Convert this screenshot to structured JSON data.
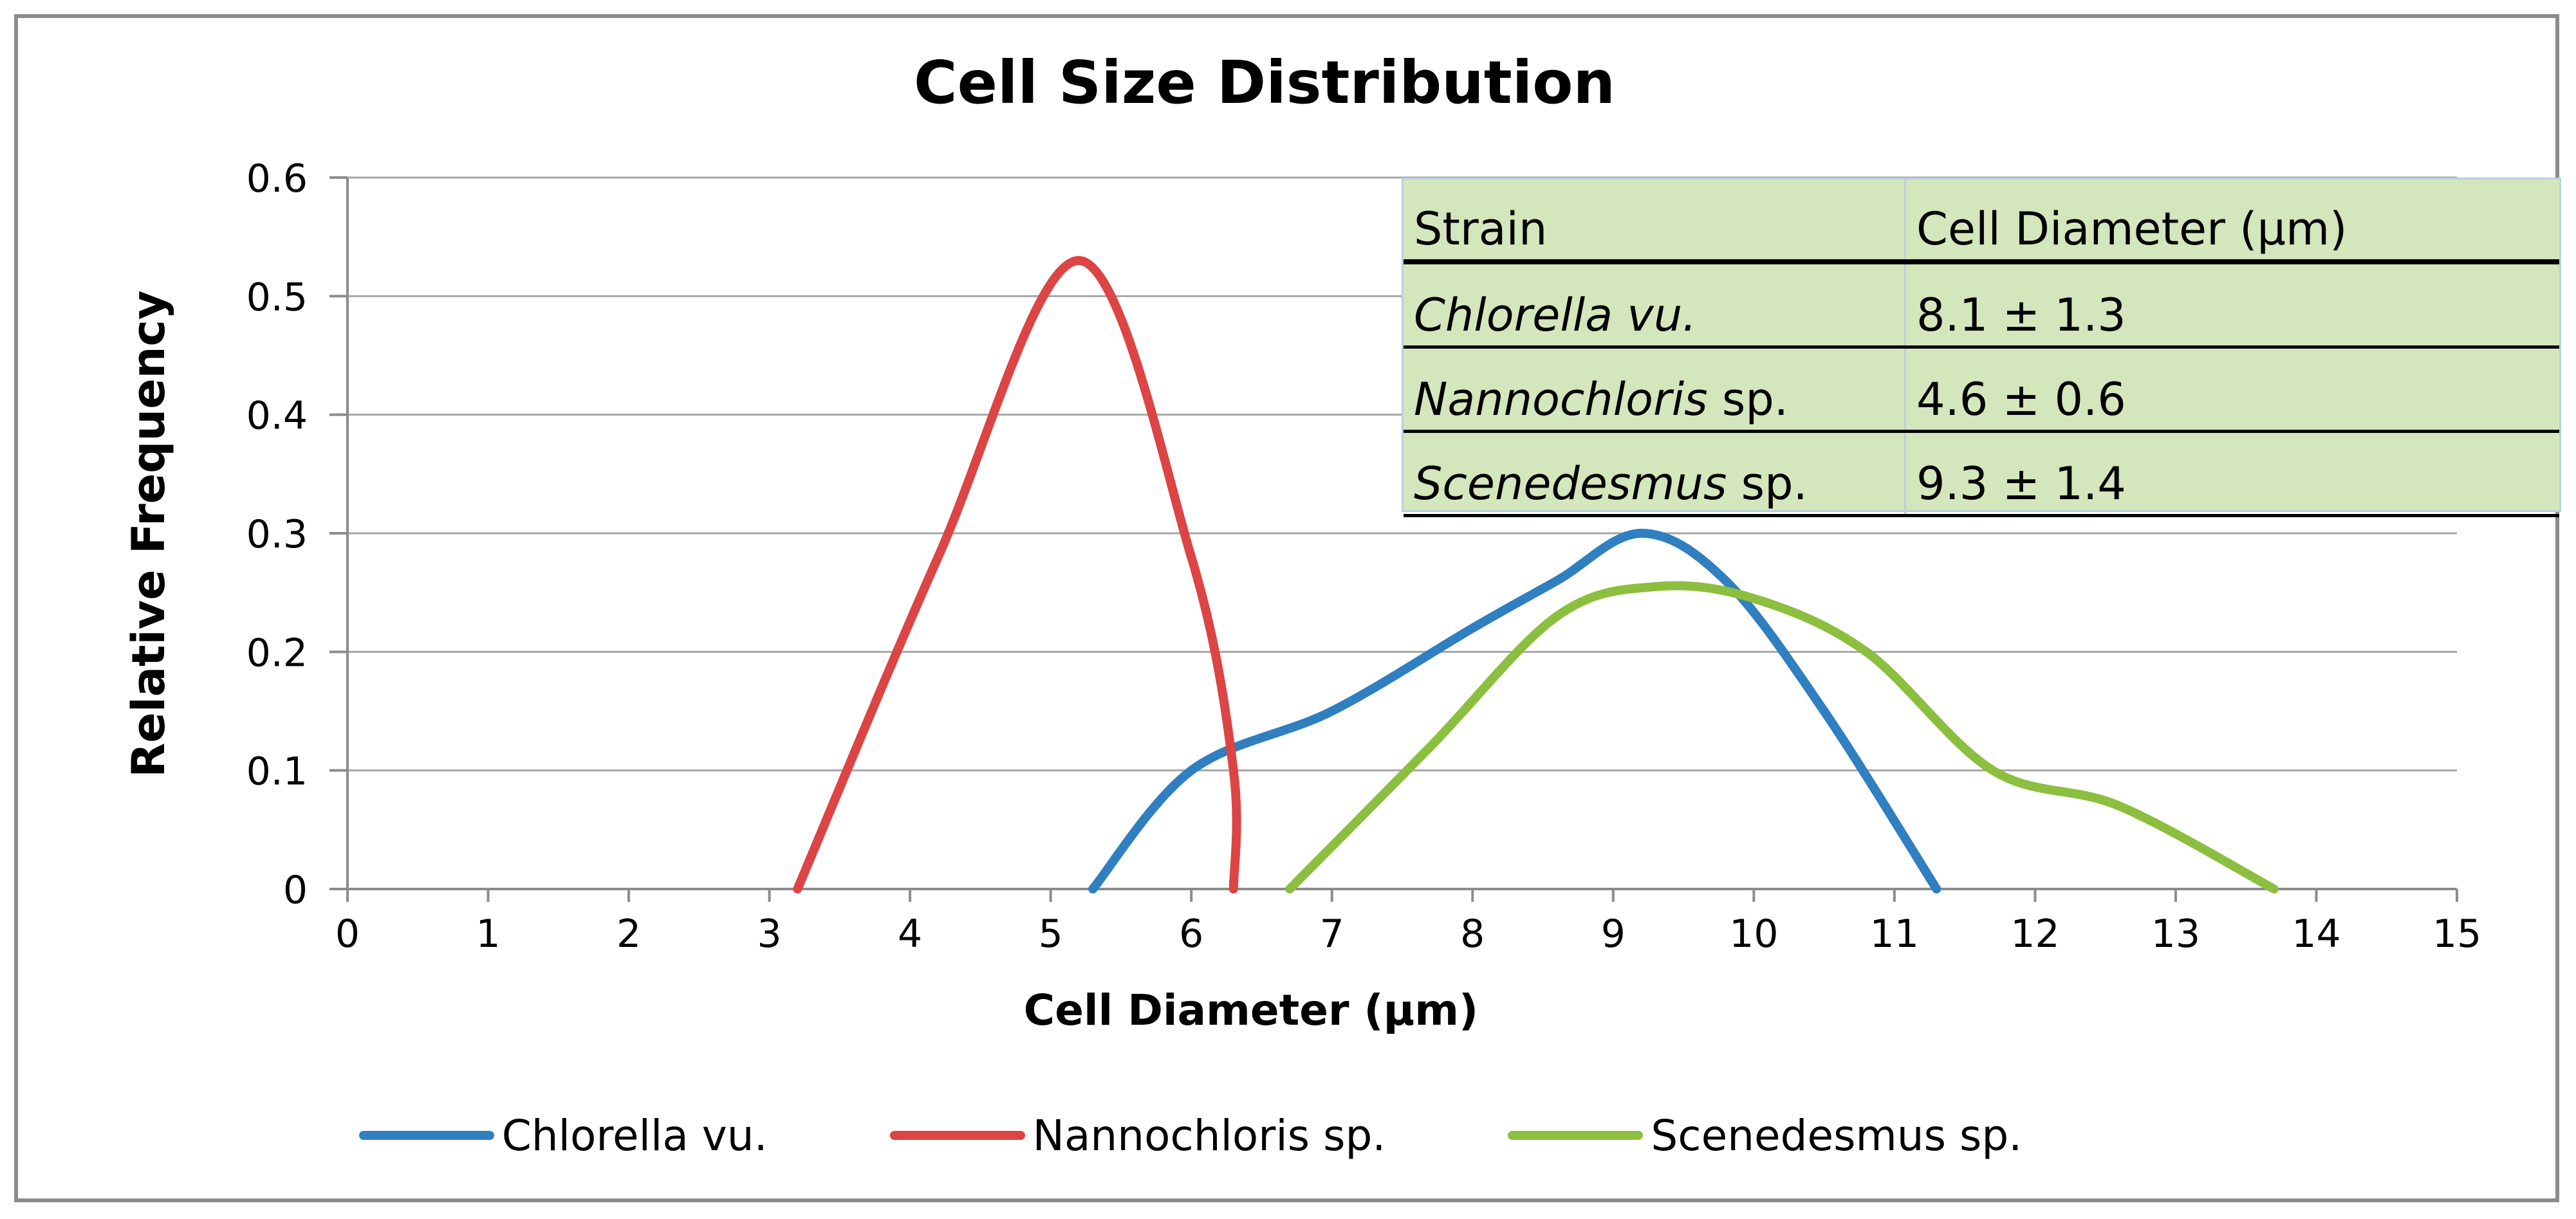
{
  "chart_data": {
    "type": "line",
    "title": "Cell Size Distribution",
    "xlabel": "Cell Diameter (µm)",
    "ylabel": "Relative Frequency",
    "xlim": [
      0,
      15
    ],
    "ylim": [
      0,
      0.6
    ],
    "x_ticks": [
      0,
      1,
      2,
      3,
      4,
      5,
      6,
      7,
      8,
      9,
      10,
      11,
      12,
      13,
      14,
      15
    ],
    "y_ticks": [
      0,
      0.1,
      0.2,
      0.3,
      0.4,
      0.5,
      0.6
    ],
    "y_tick_labels": [
      "0",
      "0.1",
      "0.2",
      "0.3",
      "0.4",
      "0.5",
      "0.6"
    ],
    "grid": "horizontal",
    "legend_position": "bottom",
    "series": [
      {
        "name": "Chlorella vu.",
        "color": "#2f7fc1",
        "x": [
          5.3,
          6.0,
          7.0,
          8.0,
          8.6,
          9.2,
          9.8,
          10.5,
          11.3
        ],
        "y": [
          0,
          0.1,
          0.15,
          0.22,
          0.26,
          0.3,
          0.26,
          0.15,
          0
        ]
      },
      {
        "name": "Nannochloris sp.",
        "color": "#dd4444",
        "x": [
          3.2,
          4.2,
          5.2,
          6.0,
          6.3,
          6.3
        ],
        "y": [
          0,
          0.28,
          0.53,
          0.28,
          0.1,
          0
        ]
      },
      {
        "name": "Scenedesmus sp.",
        "color": "#8cbf40",
        "x": [
          6.7,
          7.7,
          8.6,
          9.3,
          10.0,
          10.8,
          11.7,
          12.6,
          13.7
        ],
        "y": [
          0,
          0.12,
          0.23,
          0.255,
          0.245,
          0.2,
          0.1,
          0.07,
          0
        ]
      }
    ]
  },
  "inset_table": {
    "headers": [
      "Strain",
      "Cell Diameter (µm)"
    ],
    "rows": [
      {
        "genus": "Chlorella vu.",
        "suffix": "",
        "value": "8.1 ± 1.3"
      },
      {
        "genus": "Nannochloris",
        "suffix": " sp.",
        "value": "4.6 ± 0.6"
      },
      {
        "genus": "Scenedesmus",
        "suffix": " sp.",
        "value": "9.3 ± 1.4"
      }
    ]
  },
  "colors": {
    "table_bg": "#d4e6bc",
    "grid": "#a6a6a6",
    "frame": "#8c8c8c"
  }
}
